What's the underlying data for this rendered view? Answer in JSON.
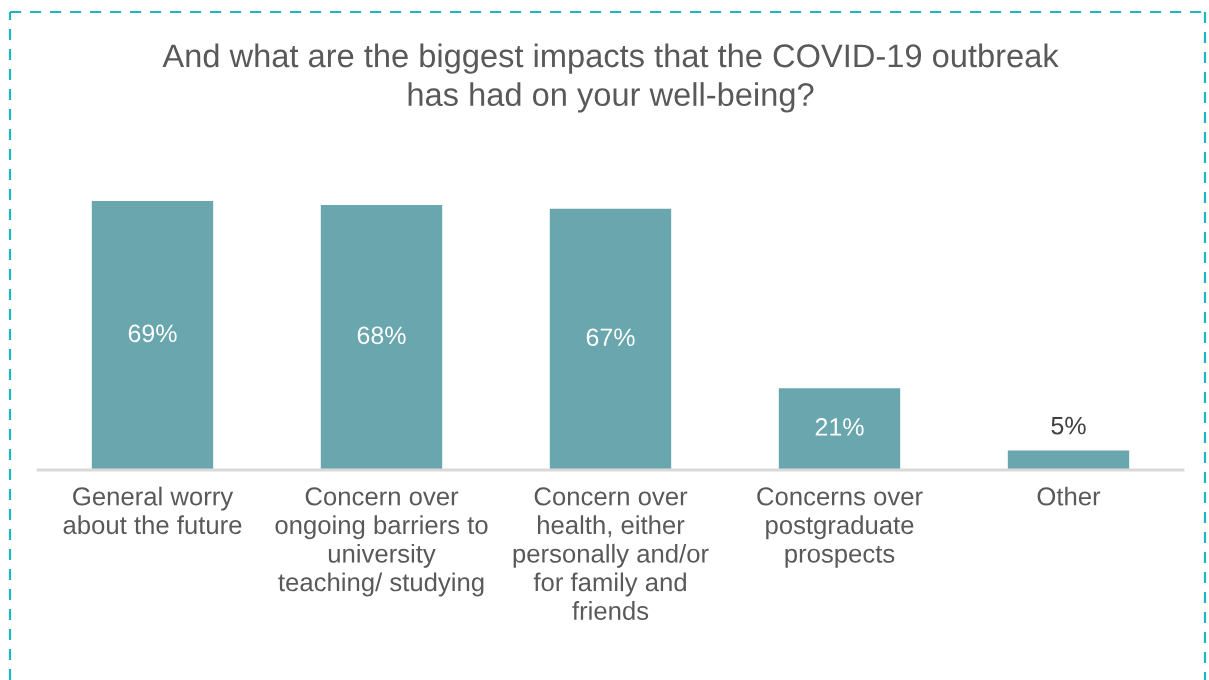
{
  "chart_data": {
    "type": "bar",
    "title": "And what are the biggest impacts that the COVID-19 outbreak\nhas had on your well-being?",
    "categories": [
      "General worry\nabout the future",
      "Concern over\nongoing barriers to\nuniversity\nteaching/ studying",
      "Concern over\nhealth, either\npersonally and/or\nfor family and\nfriends",
      "Concerns over\npostgraduate\nprospects",
      "Other"
    ],
    "values": [
      69,
      68,
      67,
      21,
      5
    ],
    "value_labels": [
      "69%",
      "68%",
      "67%",
      "21%",
      "5%"
    ],
    "color": "#6aa6ad",
    "grid": false,
    "legend": false,
    "tick_labels": "x"
  }
}
